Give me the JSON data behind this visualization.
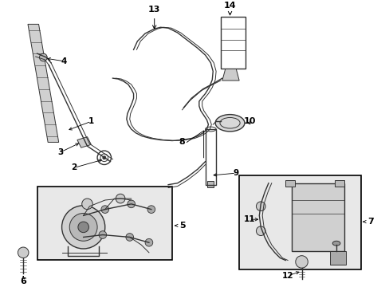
{
  "bg_color": "#ffffff",
  "line_color": "#333333",
  "box_fill": "#e8e8e8",
  "label_color": "#000000",
  "fig_w": 4.89,
  "fig_h": 3.6,
  "dpi": 100
}
